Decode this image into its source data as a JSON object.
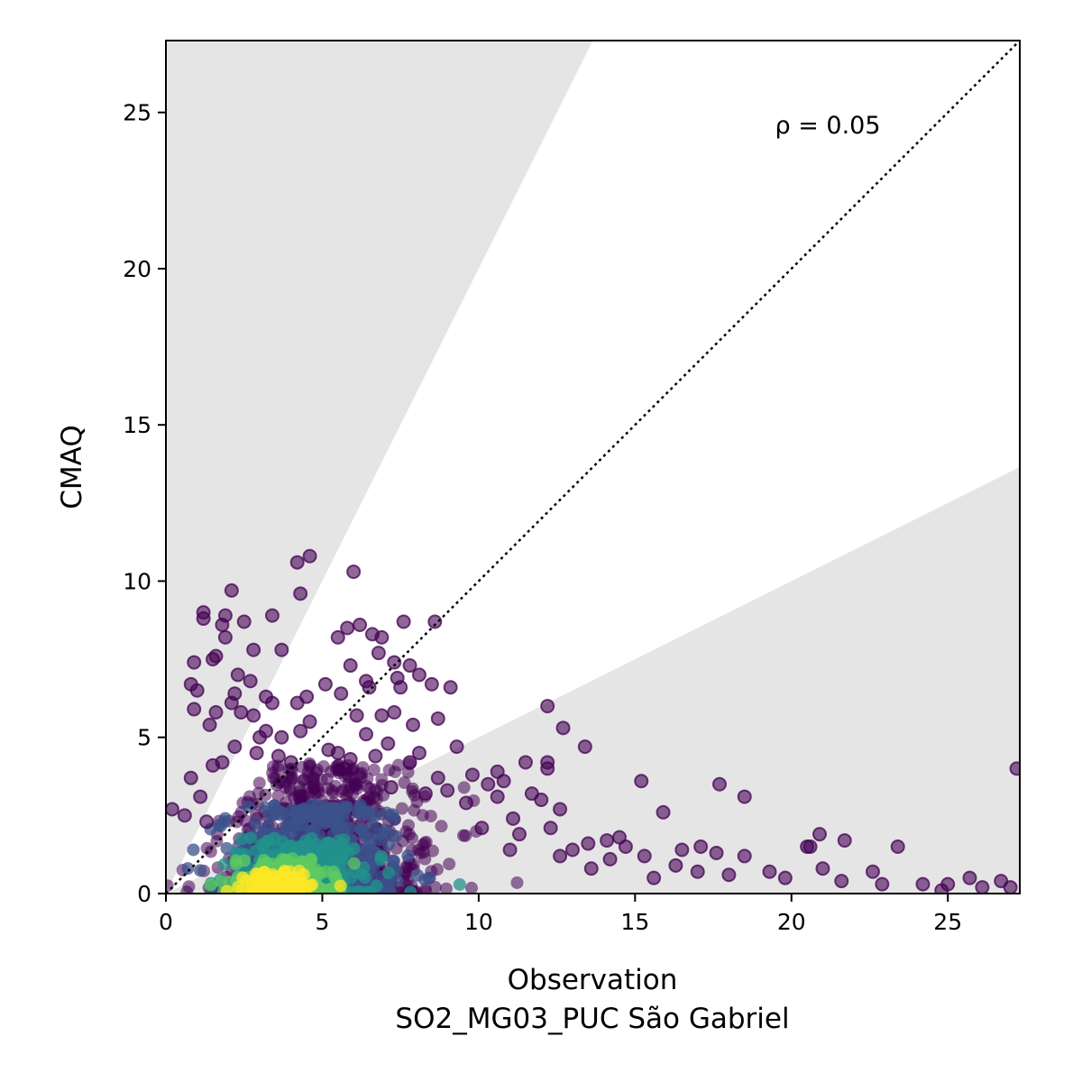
{
  "chart_data": {
    "type": "scatter",
    "title": "",
    "xlabel": "Observation",
    "xlabel_sub": "SO2_MG03_PUC São Gabriel",
    "ylabel": "CMAQ",
    "xlim": [
      0,
      27.3
    ],
    "ylim": [
      0,
      27.3
    ],
    "xticks": [
      0,
      5,
      10,
      15,
      20,
      25
    ],
    "yticks": [
      0,
      5,
      10,
      15,
      20,
      25
    ],
    "xtick_labels": [
      "0",
      "5",
      "10",
      "15",
      "20",
      "25"
    ],
    "ytick_labels": [
      "0",
      "5",
      "10",
      "15",
      "20",
      "25"
    ],
    "grid": false,
    "annotation": "ρ = 0.05",
    "reference_line": {
      "style": "dotted",
      "slope": 1
    },
    "factor_of_two_band": {
      "upper_slope": 2,
      "lower_slope": 0.5
    },
    "colors": {
      "band": "#e5e5e5",
      "marker_low_density": "#440154",
      "colormap": [
        "#440154",
        "#3b528b",
        "#21918c",
        "#5ec962",
        "#fde725"
      ]
    },
    "points": [
      [
        0.2,
        2.7
      ],
      [
        0.6,
        2.5
      ],
      [
        0.8,
        3.7
      ],
      [
        0.9,
        5.9
      ],
      [
        0.8,
        6.7
      ],
      [
        1.0,
        6.5
      ],
      [
        0.9,
        7.4
      ],
      [
        1.2,
        9.0
      ],
      [
        1.2,
        8.8
      ],
      [
        1.5,
        7.5
      ],
      [
        1.6,
        7.6
      ],
      [
        1.4,
        5.4
      ],
      [
        1.6,
        5.8
      ],
      [
        1.5,
        4.1
      ],
      [
        1.8,
        8.6
      ],
      [
        1.9,
        8.2
      ],
      [
        1.9,
        8.9
      ],
      [
        2.1,
        9.7
      ],
      [
        2.5,
        8.7
      ],
      [
        2.8,
        7.8
      ],
      [
        2.3,
        7.0
      ],
      [
        2.2,
        6.4
      ],
      [
        2.1,
        6.1
      ],
      [
        2.7,
        6.8
      ],
      [
        3.2,
        6.3
      ],
      [
        3.4,
        6.1
      ],
      [
        3.4,
        8.9
      ],
      [
        3.7,
        7.8
      ],
      [
        4.2,
        10.6
      ],
      [
        4.6,
        10.8
      ],
      [
        4.3,
        9.6
      ],
      [
        4.2,
        6.1
      ],
      [
        4.5,
        6.3
      ],
      [
        4.6,
        5.5
      ],
      [
        4.3,
        5.2
      ],
      [
        5.1,
        6.7
      ],
      [
        5.6,
        6.4
      ],
      [
        5.9,
        7.3
      ],
      [
        5.5,
        8.2
      ],
      [
        5.8,
        8.5
      ],
      [
        6.0,
        10.3
      ],
      [
        6.2,
        8.6
      ],
      [
        6.6,
        8.3
      ],
      [
        6.9,
        8.2
      ],
      [
        6.8,
        7.7
      ],
      [
        6.4,
        6.8
      ],
      [
        6.5,
        6.6
      ],
      [
        6.1,
        5.7
      ],
      [
        6.4,
        5.1
      ],
      [
        6.9,
        5.7
      ],
      [
        7.3,
        5.8
      ],
      [
        7.3,
        7.4
      ],
      [
        7.4,
        6.9
      ],
      [
        7.5,
        6.6
      ],
      [
        7.6,
        8.7
      ],
      [
        7.8,
        7.3
      ],
      [
        8.1,
        7.0
      ],
      [
        8.6,
        8.7
      ],
      [
        8.5,
        6.7
      ],
      [
        9.1,
        6.6
      ],
      [
        8.7,
        5.6
      ],
      [
        7.9,
        5.4
      ],
      [
        7.8,
        4.2
      ],
      [
        9.3,
        4.7
      ],
      [
        8.1,
        4.5
      ],
      [
        8.7,
        3.7
      ],
      [
        9.0,
        3.3
      ],
      [
        9.8,
        3.8
      ],
      [
        10.3,
        3.5
      ],
      [
        10.6,
        3.1
      ],
      [
        10.6,
        3.9
      ],
      [
        10.8,
        3.6
      ],
      [
        11.1,
        2.4
      ],
      [
        11.5,
        4.2
      ],
      [
        11.7,
        3.2
      ],
      [
        12.2,
        6.0
      ],
      [
        12.2,
        4.2
      ],
      [
        12.2,
        4.0
      ],
      [
        12.7,
        5.3
      ],
      [
        13.4,
        4.7
      ],
      [
        12.0,
        3.0
      ],
      [
        12.6,
        2.7
      ],
      [
        12.3,
        2.1
      ],
      [
        13.0,
        1.4
      ],
      [
        13.5,
        1.6
      ],
      [
        14.1,
        1.7
      ],
      [
        14.5,
        1.8
      ],
      [
        14.7,
        1.5
      ],
      [
        15.2,
        3.6
      ],
      [
        15.3,
        1.2
      ],
      [
        15.9,
        2.6
      ],
      [
        16.5,
        1.4
      ],
      [
        17.1,
        1.5
      ],
      [
        17.6,
        1.3
      ],
      [
        17.7,
        3.5
      ],
      [
        18.5,
        3.1
      ],
      [
        18.5,
        1.2
      ],
      [
        19.3,
        0.7
      ],
      [
        20.5,
        1.5
      ],
      [
        20.6,
        1.5
      ],
      [
        20.9,
        1.9
      ],
      [
        21.0,
        0.8
      ],
      [
        21.7,
        1.7
      ],
      [
        22.6,
        0.7
      ],
      [
        23.4,
        1.5
      ],
      [
        24.2,
        0.3
      ],
      [
        25.0,
        0.3
      ],
      [
        25.7,
        0.5
      ],
      [
        26.1,
        0.2
      ],
      [
        26.7,
        0.4
      ],
      [
        27.2,
        4.0
      ],
      [
        27.0,
        0.2
      ],
      [
        2.9,
        4.5
      ],
      [
        3.6,
        4.4
      ],
      [
        5.2,
        4.6
      ],
      [
        5.5,
        4.5
      ],
      [
        5.9,
        4.3
      ],
      [
        6.7,
        4.4
      ],
      [
        7.1,
        4.8
      ],
      [
        2.2,
        4.7
      ],
      [
        1.8,
        4.2
      ],
      [
        1.1,
        3.1
      ],
      [
        1.3,
        2.3
      ],
      [
        3.2,
        5.2
      ],
      [
        2.8,
        5.7
      ],
      [
        2.4,
        5.8
      ],
      [
        3.0,
        5.0
      ],
      [
        3.7,
        5.0
      ],
      [
        4.0,
        4.2
      ],
      [
        5.7,
        4.0
      ],
      [
        7.2,
        3.4
      ],
      [
        8.3,
        3.2
      ],
      [
        9.6,
        2.9
      ],
      [
        10.1,
        2.1
      ],
      [
        11.3,
        1.9
      ],
      [
        14.2,
        1.1
      ],
      [
        16.3,
        0.9
      ],
      [
        18.0,
        0.6
      ],
      [
        19.8,
        0.5
      ],
      [
        21.6,
        0.4
      ],
      [
        22.9,
        0.3
      ],
      [
        24.8,
        0.1
      ],
      [
        17.0,
        0.7
      ],
      [
        15.6,
        0.5
      ],
      [
        13.6,
        0.8
      ],
      [
        12.6,
        1.2
      ],
      [
        11.0,
        1.4
      ]
    ]
  }
}
